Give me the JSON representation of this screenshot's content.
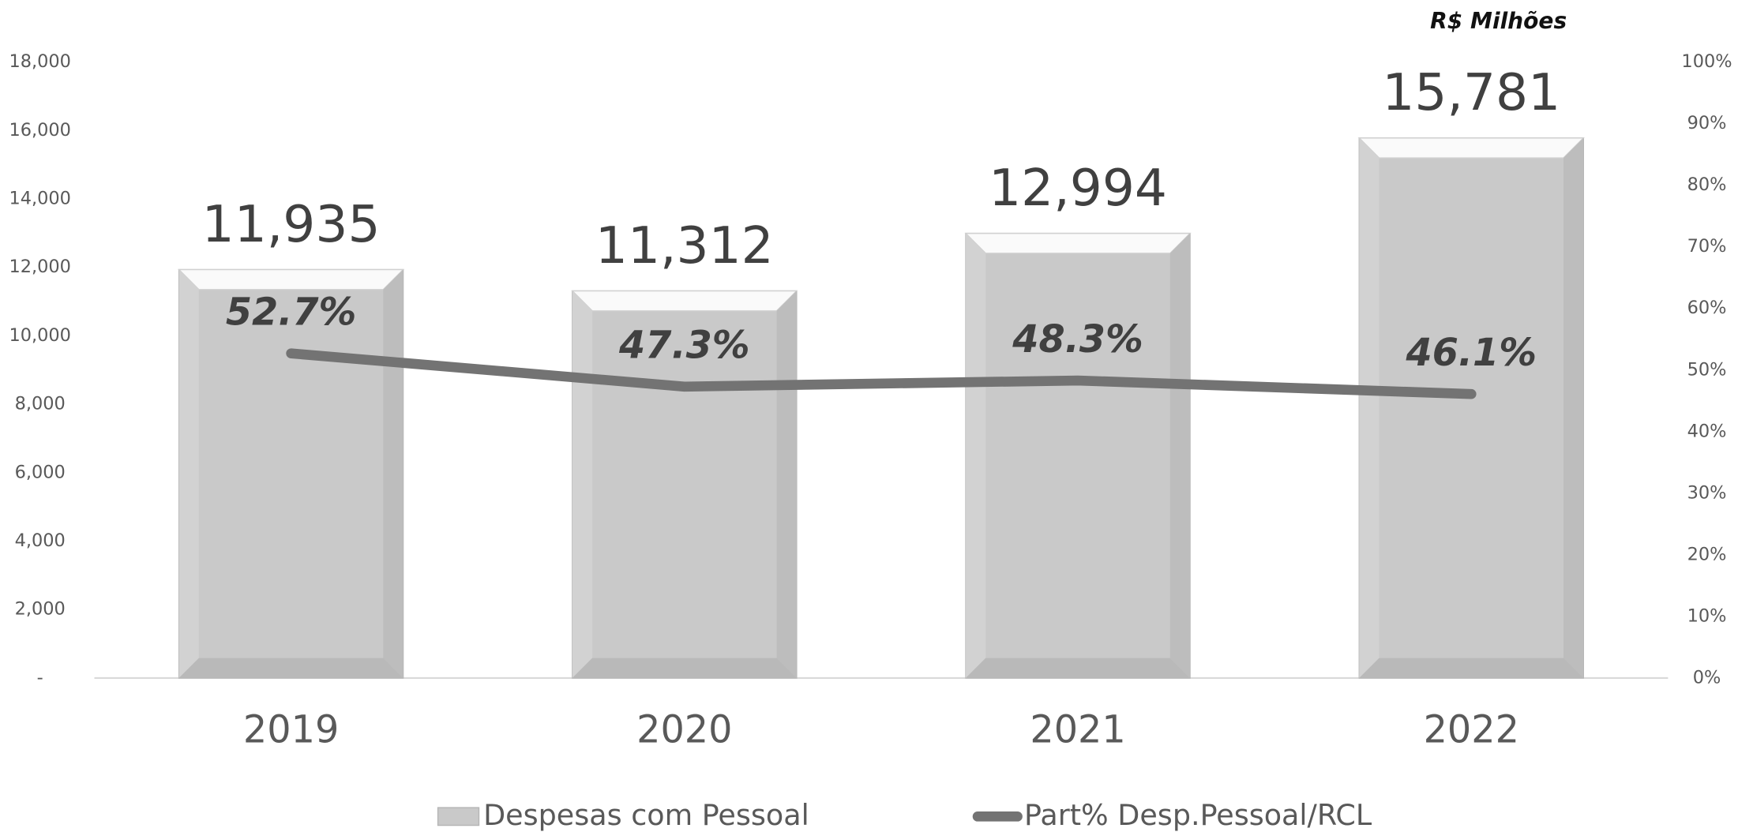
{
  "chart_data": {
    "type": "bar_line",
    "annotation": "R$ Milhões",
    "categories": [
      "2019",
      "2020",
      "2021",
      "2022"
    ],
    "series": [
      {
        "name": "Despesas com Pessoal",
        "type": "bar",
        "color": "#c9c9c9",
        "values": [
          11935,
          11312,
          12994,
          15781
        ],
        "value_labels": [
          "11,935",
          "11,312",
          "12,994",
          "15,781"
        ]
      },
      {
        "name": "Part% Desp.Pessoal/RCL",
        "type": "line",
        "axis": "y2",
        "color": "#737373",
        "values": [
          52.7,
          47.3,
          48.3,
          46.1
        ],
        "value_labels": [
          "52.7%",
          "47.3%",
          "48.3%",
          "46.1%"
        ]
      }
    ],
    "ylim": [
      0,
      18000
    ],
    "yticks": [
      {
        "value": 0,
        "label": "-"
      },
      {
        "value": 2000,
        "label": "2,000"
      },
      {
        "value": 4000,
        "label": "4,000"
      },
      {
        "value": 6000,
        "label": "6,000"
      },
      {
        "value": 8000,
        "label": "8,000"
      },
      {
        "value": 10000,
        "label": "10,000"
      },
      {
        "value": 12000,
        "label": "12,000"
      },
      {
        "value": 14000,
        "label": "14,000"
      },
      {
        "value": 16000,
        "label": "16,000"
      },
      {
        "value": 18000,
        "label": "18,000"
      }
    ],
    "y2lim": [
      0,
      100
    ],
    "y2ticks": [
      {
        "value": 0,
        "label": "0%"
      },
      {
        "value": 10,
        "label": "10%"
      },
      {
        "value": 20,
        "label": "20%"
      },
      {
        "value": 30,
        "label": "30%"
      },
      {
        "value": 40,
        "label": "40%"
      },
      {
        "value": 50,
        "label": "50%"
      },
      {
        "value": 60,
        "label": "60%"
      },
      {
        "value": 70,
        "label": "70%"
      },
      {
        "value": 80,
        "label": "80%"
      },
      {
        "value": 90,
        "label": "90%"
      },
      {
        "value": 100,
        "label": "100%"
      }
    ]
  }
}
